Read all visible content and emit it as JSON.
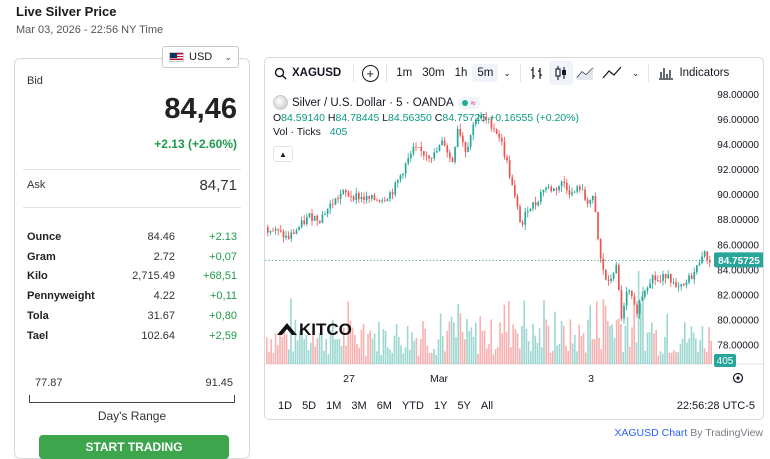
{
  "page": {
    "title": "Live Silver Price",
    "subtitle": "Mar 03, 2026 - 22:56 NY Time"
  },
  "currency": {
    "selected": "USD"
  },
  "quote": {
    "bid_label": "Bid",
    "bid_value": "84,46",
    "bid_change": "+2.13 (+2.60%)",
    "ask_label": "Ask",
    "ask_value": "84,71"
  },
  "units": [
    {
      "name": "Ounce",
      "value": "84.46",
      "change": "+2.13"
    },
    {
      "name": "Gram",
      "value": "2.72",
      "change": "+0,07"
    },
    {
      "name": "Kilo",
      "value": "2,715.49",
      "change": "+68,51"
    },
    {
      "name": "Pennyweight",
      "value": "4.22",
      "change": "+0,11"
    },
    {
      "name": "Tola",
      "value": "31.67",
      "change": "+0,80"
    },
    {
      "name": "Tael",
      "value": "102.64",
      "change": "+2,59"
    }
  ],
  "range": {
    "low": "77.87",
    "high": "91.45",
    "label": "Day's Range"
  },
  "cta": {
    "label": "START TRADING"
  },
  "colors": {
    "up": "#26a69a",
    "down": "#ef5350",
    "accent_green": "#3da64c",
    "change_green": "#1d9a4a"
  },
  "toolbar": {
    "symbol": "XAGUSD",
    "add_icon": "plus-circle-icon",
    "intervals": [
      "1m",
      "30m",
      "1h",
      "5m"
    ],
    "active_interval": "5m",
    "indicators_label": "Indicators",
    "icons": [
      "bar-type-icon",
      "candles-icon",
      "area-chart-icon",
      "line-chart-icon",
      "indicators-icon"
    ]
  },
  "legend": {
    "title": "Silver / U.S. Dollar · 5 · OANDA",
    "open_k": "O",
    "open": "84.59140",
    "high_k": "H",
    "high": "84.78445",
    "low_k": "L",
    "low": "84.56350",
    "close_k": "C",
    "close": "84.75725",
    "change": "+0.16555 (+0.20%)",
    "vol_label": "Vol · Ticks",
    "vol_value": "405"
  },
  "logo": {
    "text": "KITCO"
  },
  "chart_data": {
    "type": "candlestick",
    "symbol": "XAGUSD",
    "interval": "5",
    "y_ticks": [
      "98.00000",
      "96.00000",
      "94.00000",
      "92.00000",
      "90.00000",
      "88.00000",
      "86.00000",
      "84.00000",
      "82.00000",
      "80.00000",
      "78.00000"
    ],
    "ylim": [
      76.5,
      98.5
    ],
    "x_ticks": [
      "27",
      "Mar",
      "3"
    ],
    "last_price": "84.75725",
    "last_volume": "405",
    "path_points": [
      [
        0,
        87.4
      ],
      [
        12,
        87.0
      ],
      [
        22,
        86.5
      ],
      [
        32,
        87.3
      ],
      [
        44,
        88.3
      ],
      [
        54,
        88.1
      ],
      [
        64,
        89.1
      ],
      [
        76,
        90.1
      ],
      [
        90,
        89.9
      ],
      [
        104,
        89.6
      ],
      [
        118,
        89.7
      ],
      [
        128,
        90.4
      ],
      [
        138,
        92.1
      ],
      [
        148,
        93.6
      ],
      [
        158,
        93.3
      ],
      [
        168,
        93.1
      ],
      [
        178,
        94.3
      ],
      [
        186,
        92.4
      ],
      [
        192,
        95.5
      ],
      [
        200,
        93.5
      ],
      [
        210,
        96.2
      ],
      [
        218,
        96.0
      ],
      [
        226,
        95.6
      ],
      [
        234,
        94.6
      ],
      [
        242,
        92.3
      ],
      [
        248,
        90.0
      ],
      [
        256,
        87.4
      ],
      [
        262,
        89.0
      ],
      [
        270,
        89.3
      ],
      [
        278,
        90.6
      ],
      [
        288,
        90.4
      ],
      [
        298,
        91.0
      ],
      [
        306,
        90.0
      ],
      [
        314,
        90.6
      ],
      [
        320,
        89.5
      ],
      [
        328,
        89.6
      ],
      [
        334,
        85.0
      ],
      [
        342,
        82.7
      ],
      [
        350,
        84.4
      ],
      [
        356,
        80.0
      ],
      [
        362,
        82.5
      ],
      [
        370,
        80.6
      ],
      [
        378,
        82.4
      ],
      [
        386,
        83.5
      ],
      [
        394,
        83.0
      ],
      [
        402,
        83.9
      ],
      [
        410,
        82.4
      ],
      [
        418,
        82.6
      ],
      [
        424,
        83.4
      ],
      [
        430,
        83.9
      ],
      [
        436,
        85.4
      ],
      [
        444,
        84.76
      ]
    ]
  },
  "bottom": {
    "ranges": [
      "1D",
      "5D",
      "1M",
      "3M",
      "6M",
      "YTD",
      "1Y",
      "5Y",
      "All"
    ],
    "time": "22:56:28 UTC-5"
  },
  "attribution": {
    "symbol_link": "XAGUSD Chart",
    "by": "By TradingView"
  }
}
